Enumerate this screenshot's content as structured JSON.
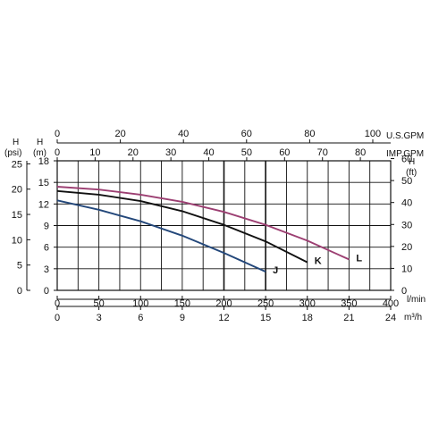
{
  "chart_data": {
    "type": "line",
    "axes": {
      "x_bottom_lmin": {
        "unit": "l/min",
        "ticks": [
          "0",
          "50",
          "100",
          "150",
          "200",
          "250",
          "300",
          "350",
          "400"
        ],
        "range": [
          0,
          400
        ]
      },
      "x_bottom_m3h": {
        "unit": "m³/h",
        "ticks": [
          "0",
          "3",
          "6",
          "9",
          "12",
          "15",
          "18",
          "21",
          "24"
        ],
        "range": [
          0,
          24
        ]
      },
      "x_top_usgpm": {
        "unit": "U.S.GPM",
        "ticks": [
          "0",
          "20",
          "40",
          "60",
          "80",
          "100"
        ],
        "range": [
          0,
          105.67
        ]
      },
      "x_top_impgpm": {
        "unit": "IMP.GPM",
        "ticks": [
          "0",
          "10",
          "20",
          "30",
          "40",
          "50",
          "60",
          "70",
          "80"
        ],
        "range": [
          0,
          88
        ]
      },
      "y_left_m": {
        "unit": "(m)",
        "label": "H",
        "ticks": [
          "0",
          "3",
          "6",
          "9",
          "12",
          "15",
          "18"
        ],
        "range": [
          0,
          18
        ]
      },
      "y_left_psi": {
        "unit": "(psi)",
        "label": "H",
        "ticks": [
          "0",
          "5",
          "10",
          "15",
          "20",
          "25"
        ],
        "range": [
          0,
          25.6
        ]
      },
      "y_right_ft": {
        "unit": "(ft)",
        "label": "H",
        "ticks": [
          "0",
          "10",
          "20",
          "30",
          "40",
          "50",
          "60"
        ],
        "range": [
          0,
          59
        ]
      }
    },
    "series": [
      {
        "name": "J",
        "color": "#23477a",
        "x": [
          0,
          50,
          100,
          150,
          200,
          250
        ],
        "y": [
          12.5,
          11.2,
          9.6,
          7.6,
          5.2,
          2.6
        ]
      },
      {
        "name": "K",
        "color": "#111111",
        "x": [
          0,
          50,
          100,
          150,
          200,
          250,
          300
        ],
        "y": [
          13.8,
          13.3,
          12.4,
          11.0,
          9.1,
          6.8,
          3.9
        ]
      },
      {
        "name": "L",
        "color": "#9c3f72",
        "x": [
          0,
          50,
          100,
          150,
          200,
          250,
          300,
          350
        ],
        "y": [
          14.4,
          14.0,
          13.3,
          12.3,
          10.9,
          9.1,
          6.9,
          4.3
        ]
      }
    ],
    "grid": true,
    "legend": "curve-end labels"
  }
}
